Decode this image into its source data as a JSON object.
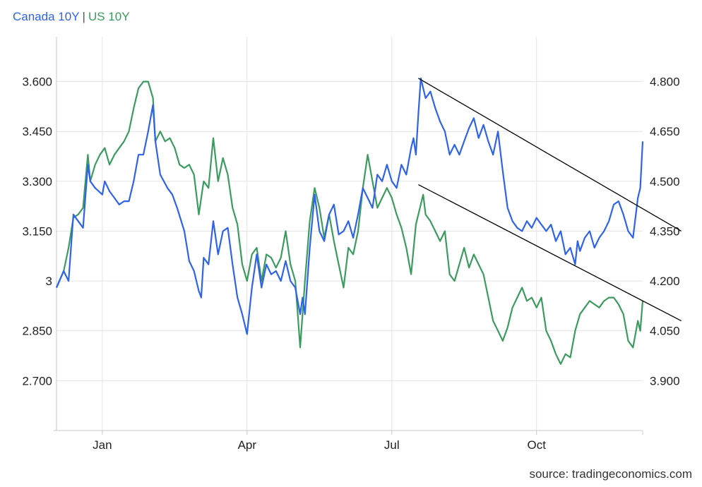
{
  "legend": {
    "series1": "Canada 10Y",
    "separator": "|",
    "series2": "US 10Y"
  },
  "source": "source: tradingeconomics.com",
  "colors": {
    "canada": "#2f63e8",
    "us": "#3c9b5e",
    "trendline": "#000000",
    "grid": "#e4e4e4",
    "axis": "#c8c8c8"
  },
  "chart_data": {
    "type": "line",
    "x_ticks": [
      "Jan",
      "Apr",
      "Jul",
      "Oct"
    ],
    "x_tick_pos": [
      1.0,
      4.0,
      7.0,
      10.0
    ],
    "x_range": [
      0.05,
      12.2
    ],
    "left_axis": {
      "ticks": [
        "3.600",
        "3.450",
        "3.300",
        "3.150",
        "3",
        "2.850",
        "2.700"
      ],
      "values": [
        3.6,
        3.45,
        3.3,
        3.15,
        3.0,
        2.85,
        2.7
      ],
      "range": [
        2.55,
        3.735
      ]
    },
    "right_axis": {
      "ticks": [
        "4.800",
        "4.650",
        "4.500",
        "4.350",
        "4.200",
        "4.050",
        "3.900"
      ],
      "values": [
        4.8,
        4.65,
        4.5,
        4.35,
        4.2,
        4.05,
        3.9
      ],
      "range": [
        3.75,
        4.935
      ]
    },
    "grid": true,
    "series": [
      {
        "name": "Canada 10Y",
        "axis": "left",
        "points": [
          [
            0.05,
            2.98
          ],
          [
            0.2,
            3.03
          ],
          [
            0.3,
            3.0
          ],
          [
            0.4,
            3.2
          ],
          [
            0.5,
            3.18
          ],
          [
            0.6,
            3.16
          ],
          [
            0.7,
            3.35
          ],
          [
            0.75,
            3.3
          ],
          [
            0.85,
            3.28
          ],
          [
            1.0,
            3.26
          ],
          [
            1.05,
            3.3
          ],
          [
            1.15,
            3.27
          ],
          [
            1.25,
            3.25
          ],
          [
            1.35,
            3.23
          ],
          [
            1.45,
            3.24
          ],
          [
            1.55,
            3.24
          ],
          [
            1.65,
            3.3
          ],
          [
            1.75,
            3.38
          ],
          [
            1.85,
            3.38
          ],
          [
            1.95,
            3.45
          ],
          [
            2.05,
            3.53
          ],
          [
            2.1,
            3.42
          ],
          [
            2.2,
            3.32
          ],
          [
            2.35,
            3.28
          ],
          [
            2.45,
            3.26
          ],
          [
            2.55,
            3.22
          ],
          [
            2.7,
            3.15
          ],
          [
            2.8,
            3.06
          ],
          [
            2.9,
            3.03
          ],
          [
            3.0,
            2.97
          ],
          [
            3.05,
            2.95
          ],
          [
            3.1,
            3.07
          ],
          [
            3.2,
            3.05
          ],
          [
            3.3,
            3.18
          ],
          [
            3.4,
            3.08
          ],
          [
            3.5,
            3.15
          ],
          [
            3.6,
            3.16
          ],
          [
            3.7,
            3.05
          ],
          [
            3.8,
            2.95
          ],
          [
            3.9,
            2.9
          ],
          [
            4.0,
            2.84
          ],
          [
            4.1,
            2.98
          ],
          [
            4.2,
            3.08
          ],
          [
            4.3,
            2.98
          ],
          [
            4.4,
            3.05
          ],
          [
            4.5,
            3.02
          ],
          [
            4.6,
            3.03
          ],
          [
            4.7,
            3.0
          ],
          [
            4.8,
            3.06
          ],
          [
            4.9,
            3.0
          ],
          [
            5.0,
            2.98
          ],
          [
            5.1,
            2.9
          ],
          [
            5.15,
            2.95
          ],
          [
            5.2,
            2.9
          ],
          [
            5.3,
            3.1
          ],
          [
            5.4,
            3.26
          ],
          [
            5.5,
            3.15
          ],
          [
            5.6,
            3.12
          ],
          [
            5.7,
            3.2
          ],
          [
            5.8,
            3.23
          ],
          [
            5.9,
            3.14
          ],
          [
            6.0,
            3.15
          ],
          [
            6.1,
            3.18
          ],
          [
            6.2,
            3.13
          ],
          [
            6.3,
            3.2
          ],
          [
            6.4,
            3.28
          ],
          [
            6.5,
            3.25
          ],
          [
            6.6,
            3.22
          ],
          [
            6.7,
            3.32
          ],
          [
            6.8,
            3.3
          ],
          [
            6.9,
            3.35
          ],
          [
            7.0,
            3.3
          ],
          [
            7.1,
            3.28
          ],
          [
            7.2,
            3.35
          ],
          [
            7.3,
            3.32
          ],
          [
            7.4,
            3.4
          ],
          [
            7.45,
            3.43
          ],
          [
            7.5,
            3.38
          ],
          [
            7.55,
            3.5
          ],
          [
            7.6,
            3.61
          ],
          [
            7.7,
            3.55
          ],
          [
            7.8,
            3.57
          ],
          [
            7.9,
            3.52
          ],
          [
            8.0,
            3.48
          ],
          [
            8.1,
            3.45
          ],
          [
            8.2,
            3.38
          ],
          [
            8.3,
            3.41
          ],
          [
            8.4,
            3.38
          ],
          [
            8.5,
            3.42
          ],
          [
            8.6,
            3.46
          ],
          [
            8.7,
            3.49
          ],
          [
            8.8,
            3.43
          ],
          [
            8.9,
            3.47
          ],
          [
            9.0,
            3.42
          ],
          [
            9.1,
            3.38
          ],
          [
            9.2,
            3.45
          ],
          [
            9.3,
            3.33
          ],
          [
            9.4,
            3.22
          ],
          [
            9.5,
            3.18
          ],
          [
            9.6,
            3.16
          ],
          [
            9.7,
            3.15
          ],
          [
            9.8,
            3.18
          ],
          [
            9.9,
            3.16
          ],
          [
            10.0,
            3.19
          ],
          [
            10.1,
            3.17
          ],
          [
            10.2,
            3.15
          ],
          [
            10.3,
            3.17
          ],
          [
            10.4,
            3.12
          ],
          [
            10.5,
            3.15
          ],
          [
            10.6,
            3.08
          ],
          [
            10.7,
            3.1
          ],
          [
            10.8,
            3.05
          ],
          [
            10.85,
            3.12
          ],
          [
            10.9,
            3.09
          ],
          [
            11.0,
            3.13
          ],
          [
            11.1,
            3.15
          ],
          [
            11.2,
            3.1
          ],
          [
            11.3,
            3.13
          ],
          [
            11.4,
            3.15
          ],
          [
            11.5,
            3.18
          ],
          [
            11.6,
            3.23
          ],
          [
            11.7,
            3.24
          ],
          [
            11.8,
            3.2
          ],
          [
            11.9,
            3.15
          ],
          [
            12.0,
            3.13
          ],
          [
            12.1,
            3.25
          ],
          [
            12.15,
            3.28
          ],
          [
            12.2,
            3.42
          ]
        ]
      },
      {
        "name": "US 10Y",
        "axis": "right",
        "points": [
          [
            0.05,
            4.18
          ],
          [
            0.2,
            4.23
          ],
          [
            0.3,
            4.3
          ],
          [
            0.4,
            4.39
          ],
          [
            0.5,
            4.4
          ],
          [
            0.6,
            4.42
          ],
          [
            0.7,
            4.58
          ],
          [
            0.75,
            4.5
          ],
          [
            0.85,
            4.55
          ],
          [
            0.95,
            4.58
          ],
          [
            1.05,
            4.6
          ],
          [
            1.15,
            4.55
          ],
          [
            1.25,
            4.58
          ],
          [
            1.35,
            4.6
          ],
          [
            1.45,
            4.62
          ],
          [
            1.55,
            4.65
          ],
          [
            1.65,
            4.72
          ],
          [
            1.75,
            4.78
          ],
          [
            1.85,
            4.8
          ],
          [
            1.95,
            4.8
          ],
          [
            2.05,
            4.75
          ],
          [
            2.1,
            4.62
          ],
          [
            2.2,
            4.65
          ],
          [
            2.3,
            4.62
          ],
          [
            2.4,
            4.63
          ],
          [
            2.5,
            4.6
          ],
          [
            2.6,
            4.55
          ],
          [
            2.7,
            4.54
          ],
          [
            2.8,
            4.55
          ],
          [
            2.9,
            4.52
          ],
          [
            3.0,
            4.4
          ],
          [
            3.1,
            4.5
          ],
          [
            3.2,
            4.48
          ],
          [
            3.3,
            4.63
          ],
          [
            3.4,
            4.5
          ],
          [
            3.5,
            4.57
          ],
          [
            3.6,
            4.52
          ],
          [
            3.7,
            4.42
          ],
          [
            3.8,
            4.37
          ],
          [
            3.9,
            4.25
          ],
          [
            4.0,
            4.2
          ],
          [
            4.1,
            4.28
          ],
          [
            4.2,
            4.3
          ],
          [
            4.3,
            4.2
          ],
          [
            4.4,
            4.28
          ],
          [
            4.5,
            4.27
          ],
          [
            4.6,
            4.24
          ],
          [
            4.7,
            4.27
          ],
          [
            4.8,
            4.35
          ],
          [
            4.9,
            4.25
          ],
          [
            5.0,
            4.2
          ],
          [
            5.05,
            4.1
          ],
          [
            5.1,
            4.0
          ],
          [
            5.2,
            4.2
          ],
          [
            5.3,
            4.38
          ],
          [
            5.4,
            4.48
          ],
          [
            5.5,
            4.42
          ],
          [
            5.6,
            4.33
          ],
          [
            5.7,
            4.4
          ],
          [
            5.8,
            4.32
          ],
          [
            5.9,
            4.25
          ],
          [
            6.0,
            4.18
          ],
          [
            6.1,
            4.3
          ],
          [
            6.2,
            4.28
          ],
          [
            6.3,
            4.35
          ],
          [
            6.4,
            4.48
          ],
          [
            6.5,
            4.58
          ],
          [
            6.6,
            4.5
          ],
          [
            6.7,
            4.42
          ],
          [
            6.8,
            4.45
          ],
          [
            6.9,
            4.48
          ],
          [
            7.0,
            4.45
          ],
          [
            7.1,
            4.4
          ],
          [
            7.2,
            4.36
          ],
          [
            7.3,
            4.3
          ],
          [
            7.4,
            4.22
          ],
          [
            7.5,
            4.37
          ],
          [
            7.6,
            4.43
          ],
          [
            7.65,
            4.46
          ],
          [
            7.7,
            4.4
          ],
          [
            7.8,
            4.38
          ],
          [
            7.9,
            4.35
          ],
          [
            8.0,
            4.32
          ],
          [
            8.1,
            4.35
          ],
          [
            8.2,
            4.22
          ],
          [
            8.3,
            4.2
          ],
          [
            8.4,
            4.25
          ],
          [
            8.5,
            4.3
          ],
          [
            8.6,
            4.24
          ],
          [
            8.7,
            4.28
          ],
          [
            8.8,
            4.25
          ],
          [
            8.9,
            4.22
          ],
          [
            9.0,
            4.15
          ],
          [
            9.1,
            4.08
          ],
          [
            9.2,
            4.05
          ],
          [
            9.3,
            4.02
          ],
          [
            9.4,
            4.06
          ],
          [
            9.5,
            4.12
          ],
          [
            9.6,
            4.15
          ],
          [
            9.7,
            4.18
          ],
          [
            9.8,
            4.14
          ],
          [
            9.9,
            4.15
          ],
          [
            10.0,
            4.12
          ],
          [
            10.1,
            4.15
          ],
          [
            10.2,
            4.05
          ],
          [
            10.3,
            4.02
          ],
          [
            10.4,
            3.98
          ],
          [
            10.5,
            3.95
          ],
          [
            10.6,
            3.98
          ],
          [
            10.7,
            3.97
          ],
          [
            10.8,
            4.05
          ],
          [
            10.9,
            4.1
          ],
          [
            11.0,
            4.12
          ],
          [
            11.1,
            4.14
          ],
          [
            11.2,
            4.13
          ],
          [
            11.3,
            4.12
          ],
          [
            11.4,
            4.14
          ],
          [
            11.5,
            4.15
          ],
          [
            11.6,
            4.15
          ],
          [
            11.7,
            4.13
          ],
          [
            11.8,
            4.1
          ],
          [
            11.9,
            4.02
          ],
          [
            12.0,
            4.0
          ],
          [
            12.1,
            4.08
          ],
          [
            12.15,
            4.05
          ],
          [
            12.2,
            4.14
          ]
        ]
      }
    ],
    "trendlines": [
      {
        "axis": "left",
        "from": [
          7.55,
          3.61
        ],
        "to": [
          13.0,
          3.15
        ]
      },
      {
        "axis": "left",
        "from": [
          7.55,
          3.29
        ],
        "to": [
          13.0,
          2.88
        ]
      }
    ]
  }
}
